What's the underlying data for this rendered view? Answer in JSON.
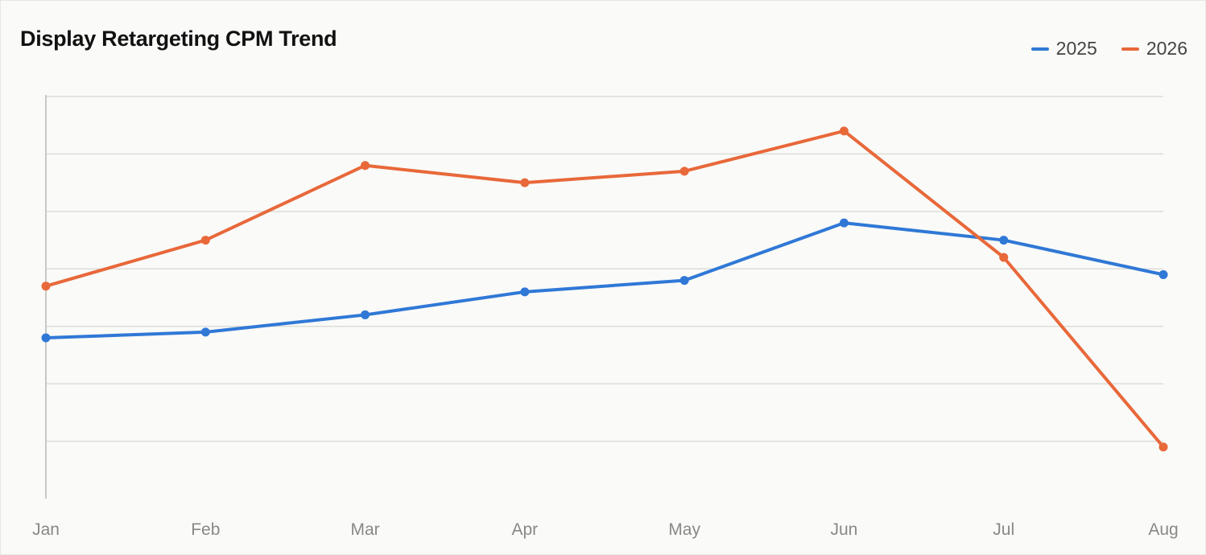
{
  "chart_data": {
    "type": "line",
    "title": "Display Retargeting CPM Trend",
    "xlabel": "",
    "ylabel": "",
    "categories": [
      "Jan",
      "Feb",
      "Mar",
      "Apr",
      "May",
      "Jun",
      "Jul",
      "Aug"
    ],
    "ylim": [
      0,
      7
    ],
    "y_ticks": [
      0,
      1,
      2,
      3,
      4,
      5,
      6,
      7
    ],
    "y_tick_labels_shown": false,
    "grid": true,
    "legend_position": "top-right",
    "series": [
      {
        "name": "2025",
        "color": "#2f78d6",
        "values": [
          2.8,
          2.9,
          3.2,
          3.6,
          3.8,
          4.8,
          4.5,
          3.9
        ]
      },
      {
        "name": "2026",
        "color": "#e8683a",
        "values": [
          3.7,
          4.5,
          5.8,
          5.5,
          5.7,
          6.4,
          4.2,
          0.9
        ]
      }
    ]
  }
}
